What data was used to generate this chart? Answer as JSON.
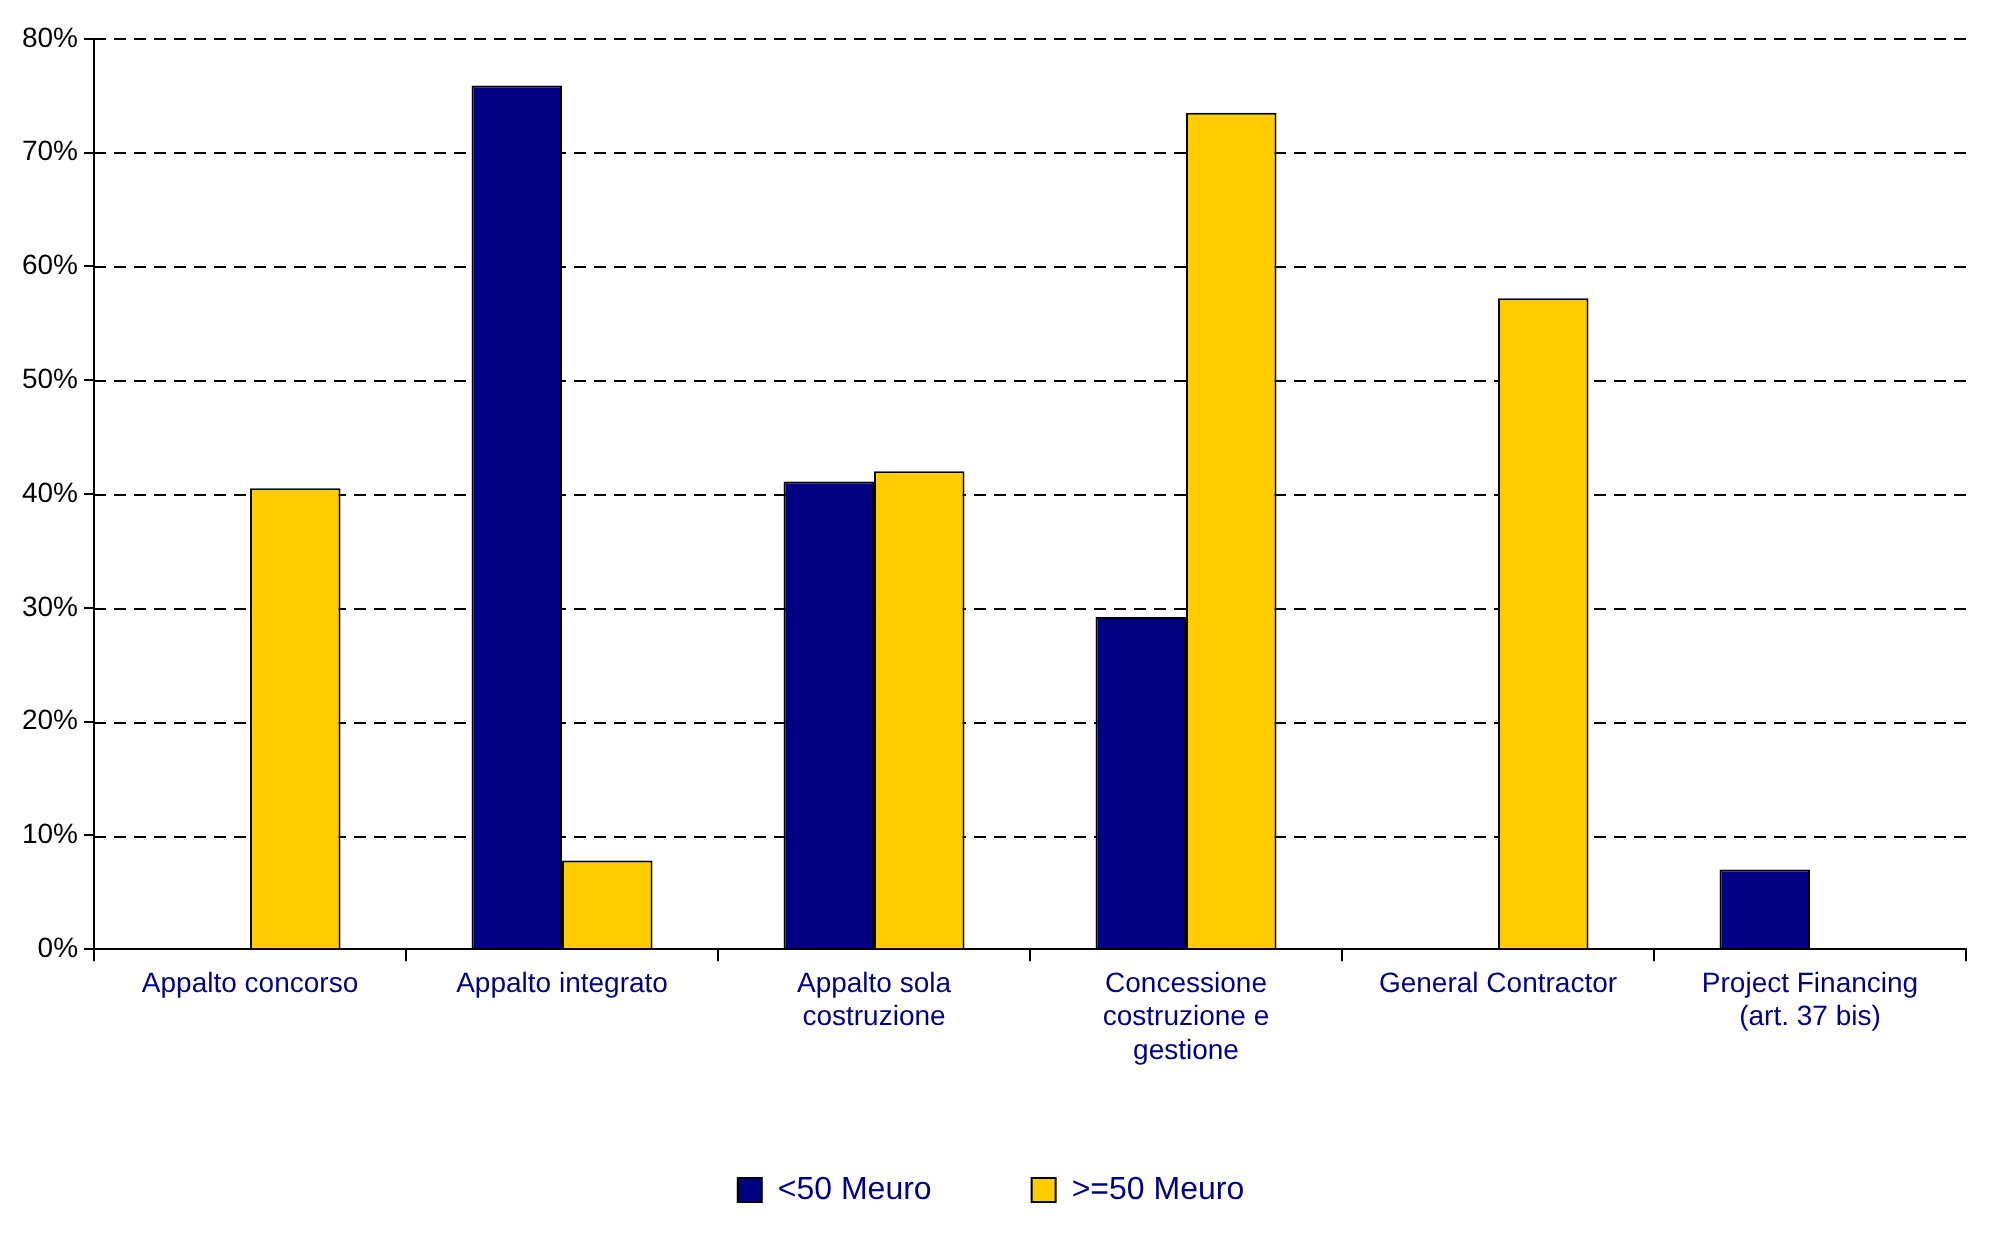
{
  "chart_data": {
    "type": "bar",
    "categories": [
      "Appalto concorso",
      "Appalto integrato",
      "Appalto sola costruzione",
      "Concessione costruzione e gestione",
      "General Contractor",
      "Project Financing (art. 37 bis)"
    ],
    "series": [
      {
        "name": "<50 Meuro",
        "color": "#000080",
        "values": [
          0,
          75.9,
          41.1,
          29.2,
          0,
          7.0
        ]
      },
      {
        "name": ">=50 Meuro",
        "color": "#ffcc00",
        "values": [
          40.5,
          7.8,
          42.0,
          73.5,
          57.2,
          0
        ]
      }
    ],
    "ylim": [
      0,
      80
    ],
    "yticks": [
      {
        "value": 0,
        "label": "0%"
      },
      {
        "value": 10,
        "label": "10%"
      },
      {
        "value": 20,
        "label": "20%"
      },
      {
        "value": 30,
        "label": "30%"
      },
      {
        "value": 40,
        "label": "40%"
      },
      {
        "value": 50,
        "label": "50%"
      },
      {
        "value": 60,
        "label": "60%"
      },
      {
        "value": 70,
        "label": "70%"
      },
      {
        "value": 80,
        "label": "80%"
      }
    ],
    "grid": "y",
    "legend": "bottom"
  }
}
